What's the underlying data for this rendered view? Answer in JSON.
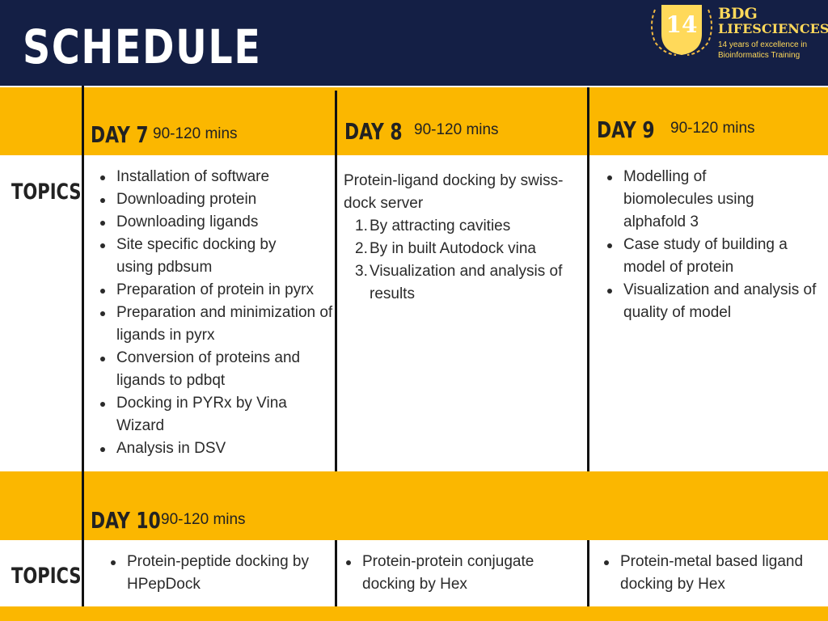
{
  "header": {
    "title": "SCHEDULE"
  },
  "logo": {
    "badge_number": "14",
    "name_line1": "BDG",
    "name_line2": "LIFESCIENCES",
    "tagline_line1": "14 years of excellence in",
    "tagline_line2": "Bioinformatics Training",
    "colors": {
      "background": "#141f45",
      "gold": "#ffd95a"
    }
  },
  "colors": {
    "band": "#fbb700",
    "navy": "#141f45"
  },
  "row1": {
    "topics_label": "TOPICS",
    "days": [
      {
        "day": "DAY 7",
        "duration": "90-120 mins"
      },
      {
        "day": "DAY 8",
        "duration": "90-120 mins"
      },
      {
        "day": "DAY 9",
        "duration": "90-120 mins"
      }
    ],
    "day7_items": [
      "Installation of software",
      "Downloading protein",
      "Downloading ligands",
      "Site specific docking by using pdbsum",
      "Preparation of protein in pyrx",
      "Preparation and minimization of ligands in pyrx",
      "Conversion of proteins and ligands to pdbqt",
      "Docking in PYRx by Vina Wizard",
      "Analysis in DSV"
    ],
    "day8_intro": "Protein-ligand docking by swiss-dock server",
    "day8_items": [
      "By attracting cavities",
      "By in built Autodock vina",
      "Visualization and analysis of results"
    ],
    "day9_items": [
      "Modelling of biomolecules using alphafold 3",
      "Case study of building a model of protein",
      "Visualization and analysis of quality of model"
    ]
  },
  "row2": {
    "topics_label": "TOPICS",
    "day": "DAY 10",
    "duration": "90-120 mins",
    "col1": [
      "Protein-peptide docking by HPepDock"
    ],
    "col2": [
      "Protein-protein conjugate docking by Hex"
    ],
    "col3": [
      "Protein-metal based ligand docking by Hex"
    ]
  }
}
